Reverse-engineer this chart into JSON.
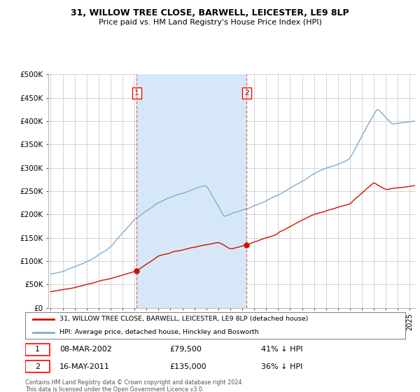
{
  "title_line1": "31, WILLOW TREE CLOSE, BARWELL, LEICESTER, LE9 8LP",
  "title_line2": "Price paid vs. HM Land Registry's House Price Index (HPI)",
  "background_color": "#ffffff",
  "plot_bg_color": "#ffffff",
  "hpi_color": "#7bafd4",
  "price_color": "#cc1100",
  "sale1_year": 2002.19,
  "sale2_year": 2011.37,
  "sale1_price": 79500,
  "sale2_price": 135000,
  "sale1_date": "08-MAR-2002",
  "sale2_date": "16-MAY-2011",
  "sale1_label": "41% ↓ HPI",
  "sale2_label": "36% ↓ HPI",
  "shade_color": "#d6e8f7",
  "vline_color": "#e05050",
  "ylim_min": 0,
  "ylim_max": 500000,
  "xlim_min": 1994.8,
  "xlim_max": 2025.5,
  "yticks": [
    0,
    50000,
    100000,
    150000,
    200000,
    250000,
    300000,
    350000,
    400000,
    450000,
    500000
  ],
  "ytick_labels": [
    "£0",
    "£50K",
    "£100K",
    "£150K",
    "£200K",
    "£250K",
    "£300K",
    "£350K",
    "£400K",
    "£450K",
    "£500K"
  ],
  "legend_text1": "31, WILLOW TREE CLOSE, BARWELL, LEICESTER, LE9 8LP (detached house)",
  "legend_text2": "HPI: Average price, detached house, Hinckley and Bosworth",
  "footer_text": "Contains HM Land Registry data © Crown copyright and database right 2024.\nThis data is licensed under the Open Government Licence v3.0."
}
